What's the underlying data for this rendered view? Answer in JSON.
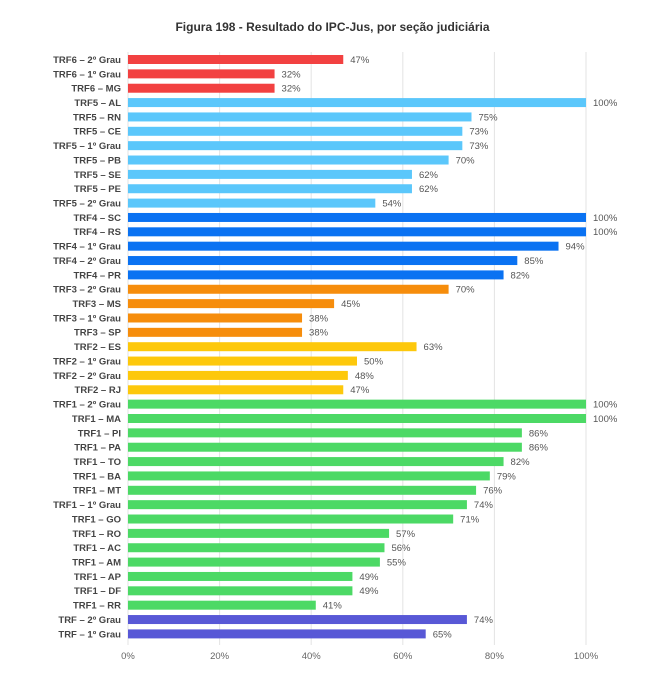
{
  "chart_data": {
    "type": "bar",
    "orientation": "horizontal",
    "title": "Figura 198 - Resultado do IPC-Jus, por seção judiciária",
    "xlabel": "",
    "ylabel": "",
    "xlim": [
      0,
      100
    ],
    "x_ticks": [
      "0%",
      "20%",
      "40%",
      "60%",
      "80%",
      "100%"
    ],
    "grid": true,
    "value_suffix": "%",
    "categories": [
      "TRF6 – 2º Grau",
      "TRF6 – 1º Grau",
      "TRF6 – MG",
      "TRF5 – AL",
      "TRF5 – RN",
      "TRF5 – CE",
      "TRF5 – 1º Grau",
      "TRF5 – PB",
      "TRF5 – SE",
      "TRF5 – PE",
      "TRF5 – 2º Grau",
      "TRF4 – SC",
      "TRF4 – RS",
      "TRF4 – 1º Grau",
      "TRF4 – 2º Grau",
      "TRF4 – PR",
      "TRF3 – 2º Grau",
      "TRF3 – MS",
      "TRF3 – 1º Grau",
      "TRF3 – SP",
      "TRF2 – ES",
      "TRF2 – 1º Grau",
      "TRF2 – 2º Grau",
      "TRF2 – RJ",
      "TRF1 – 2º Grau",
      "TRF1 – MA",
      "TRF1 – PI",
      "TRF1 – PA",
      "TRF1 – TO",
      "TRF1 – BA",
      "TRF1 – MT",
      "TRF1 – 1º Grau",
      "TRF1 – GO",
      "TRF1 – RO",
      "TRF1 – AC",
      "TRF1 – AM",
      "TRF1 – AP",
      "TRF1 – DF",
      "TRF1 – RR",
      "TRF – 2º Grau",
      "TRF – 1º Grau"
    ],
    "values": [
      47,
      32,
      32,
      100,
      75,
      73,
      73,
      70,
      62,
      62,
      54,
      100,
      100,
      94,
      85,
      82,
      70,
      45,
      38,
      38,
      63,
      50,
      48,
      47,
      100,
      100,
      86,
      86,
      82,
      79,
      76,
      74,
      71,
      57,
      56,
      55,
      49,
      49,
      41,
      74,
      65
    ],
    "groups": [
      {
        "count": 3,
        "color": "#f24141"
      },
      {
        "count": 8,
        "color": "#5bc7fb"
      },
      {
        "count": 5,
        "color": "#0a72f2"
      },
      {
        "count": 4,
        "color": "#f68d0c"
      },
      {
        "count": 4,
        "color": "#fdc80c"
      },
      {
        "count": 15,
        "color": "#4cd965"
      },
      {
        "count": 2,
        "color": "#5858d6"
      }
    ]
  }
}
